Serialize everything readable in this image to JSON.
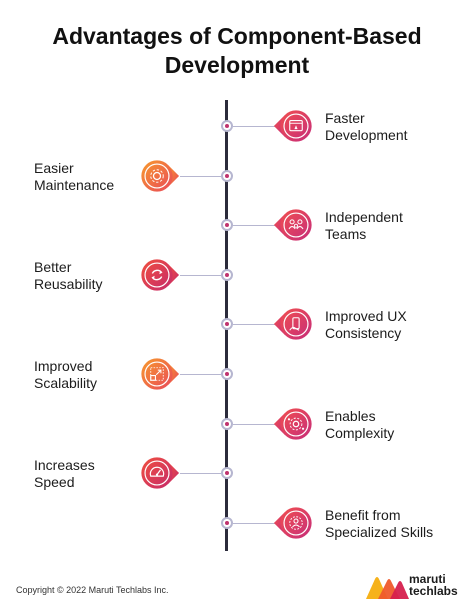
{
  "title": {
    "line1": "Advantages of Component-Based",
    "line2": "Development"
  },
  "items": [
    {
      "side": "right",
      "lines": [
        "Faster",
        "Development"
      ],
      "icon": "rocket-browser-icon",
      "colors": [
        "#f04f4f",
        "#c72d7a"
      ]
    },
    {
      "side": "left",
      "lines": [
        "Easier",
        "Maintenance"
      ],
      "icon": "gear-icon",
      "colors": [
        "#f79a2c",
        "#e9485a"
      ]
    },
    {
      "side": "right",
      "lines": [
        "Independent",
        "Teams"
      ],
      "icon": "team-icon",
      "colors": [
        "#f04f4f",
        "#c72d7a"
      ]
    },
    {
      "side": "left",
      "lines": [
        "Better",
        "Reusability"
      ],
      "icon": "refresh-icon",
      "colors": [
        "#f0503e",
        "#c62a6b"
      ]
    },
    {
      "side": "right",
      "lines": [
        "Improved UX",
        "Consistency"
      ],
      "icon": "mobile-hand-icon",
      "colors": [
        "#f04f4f",
        "#c72d7a"
      ]
    },
    {
      "side": "left",
      "lines": [
        "Improved",
        "Scalability"
      ],
      "icon": "resize-icon",
      "colors": [
        "#f79a2c",
        "#e9485a"
      ]
    },
    {
      "side": "right",
      "lines": [
        "Enables",
        "Complexity"
      ],
      "icon": "cog-network-icon",
      "colors": [
        "#f04f4f",
        "#c72d7a"
      ]
    },
    {
      "side": "left",
      "lines": [
        "Increases",
        "Speed"
      ],
      "icon": "speedometer-icon",
      "colors": [
        "#f0503e",
        "#c62a6b"
      ]
    },
    {
      "side": "right",
      "lines": [
        "Benefit from",
        "Specialized Skills"
      ],
      "icon": "specialist-icon",
      "colors": [
        "#f04f4f",
        "#c72d7a"
      ]
    }
  ],
  "footer": {
    "copyright": "Copyright © 2022 Maruti Techlabs Inc.",
    "logo_line1": "maruti",
    "logo_line2": "techlabs"
  },
  "colors": {
    "timeline": "#2b2b3b",
    "connector": "#b6b6d0",
    "accent_pink": "#c0336e",
    "logo_yellow": "#f6b21b",
    "logo_orange": "#ef5a2b",
    "logo_red": "#d6204e"
  }
}
